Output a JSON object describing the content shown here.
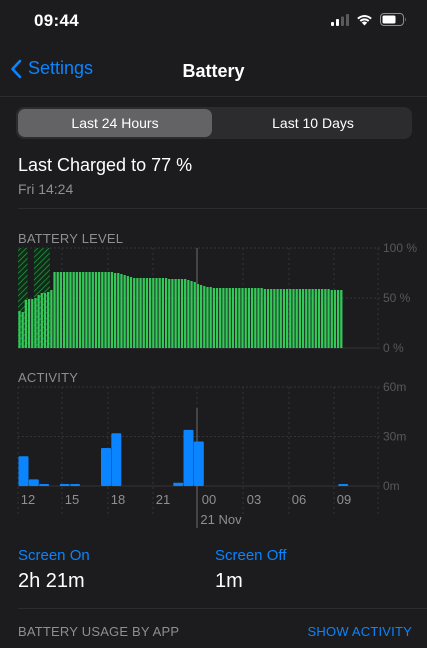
{
  "status": {
    "time": "09:44",
    "icons": [
      "cellular-signal-icon",
      "wifi-icon",
      "battery-icon"
    ]
  },
  "nav": {
    "back_label": "Settings",
    "title": "Battery"
  },
  "segments": {
    "items": [
      "Last 24 Hours",
      "Last 10 Days"
    ],
    "selected": "Last 24 Hours"
  },
  "last_charged": {
    "title": "Last Charged to 77 %",
    "date": "Fri 14:24"
  },
  "battery_section": {
    "label": "BATTERY LEVEL"
  },
  "activity_section": {
    "label": "ACTIVITY"
  },
  "colors": {
    "accent": "#0a84ff",
    "battery_green": "#34c759",
    "activity_blue": "#0a84ff"
  },
  "chart_data": [
    {
      "type": "bar",
      "name_hint": "battery-level",
      "ylim": [
        0,
        100
      ],
      "y_ticks": [
        "100 %",
        "50 %",
        "0 %"
      ],
      "values": [
        37,
        36,
        48,
        49,
        49,
        50,
        53,
        55,
        55,
        56,
        58,
        76,
        76,
        76,
        76,
        76,
        76,
        76,
        76,
        76,
        76,
        76,
        76,
        76,
        76,
        76,
        76,
        76,
        76,
        76,
        75,
        75,
        74,
        73,
        72,
        71,
        70,
        70,
        70,
        70,
        70,
        70,
        70,
        70,
        70,
        70,
        70,
        69,
        69,
        69,
        69,
        69,
        69,
        68,
        67,
        66,
        64,
        63,
        62,
        61,
        61,
        60,
        60,
        60,
        60,
        60,
        60,
        60,
        60,
        60,
        60,
        60,
        60,
        60,
        60,
        60,
        60,
        59,
        59,
        59,
        59,
        59,
        59,
        59,
        59,
        59,
        59,
        59,
        59,
        59,
        59,
        59,
        59,
        59,
        59,
        59,
        59,
        59,
        58,
        58,
        58,
        58
      ]
    },
    {
      "type": "bar",
      "name_hint": "activity",
      "ylim": [
        0,
        60
      ],
      "y_ticks": [
        "60m",
        "30m",
        "0m"
      ],
      "x_ticks": [
        "12",
        "15",
        "18",
        "21",
        "00",
        "03",
        "06",
        "09"
      ],
      "x_sublabel": "21 Nov",
      "values": [
        18,
        4,
        1,
        0,
        1,
        1,
        0,
        0,
        23,
        32,
        0,
        0,
        0,
        0,
        0,
        2,
        34,
        27,
        0,
        0,
        0,
        0,
        0,
        0,
        0,
        0,
        0,
        0,
        0,
        0,
        0,
        1
      ]
    }
  ],
  "screen_on": {
    "label": "Screen On",
    "value": "2h 21m"
  },
  "screen_off": {
    "label": "Screen Off",
    "value": "1m"
  },
  "usage": {
    "label": "BATTERY USAGE BY APP",
    "action": "SHOW ACTIVITY"
  }
}
